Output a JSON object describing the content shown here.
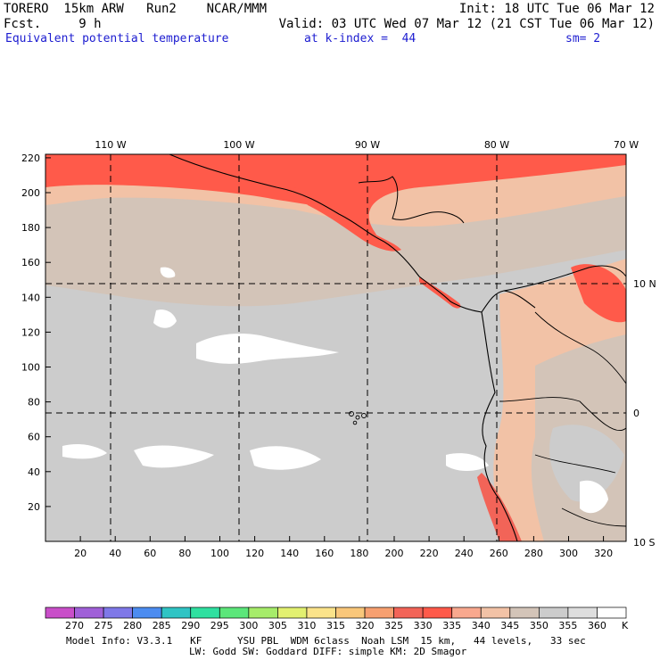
{
  "header": {
    "model": "TORERO  15km ARW   Run2    NCAR/MMM",
    "init": "Init: 18 UTC Tue 06 Mar 12",
    "fcst_label": "Fcst.     9 h",
    "valid": "Valid: 03 UTC Wed 07 Mar 12 (21 CST Tue 06 Mar 12)",
    "field": "Equivalent potential temperature",
    "level": "at k-index =  44",
    "smoothing": "sm= 2"
  },
  "map": {
    "lon_labels": [
      "110 W",
      "100 W",
      "90 W",
      "80 W",
      "70 W"
    ],
    "lat_labels": [
      "10 N",
      "0",
      "10 S"
    ],
    "x_ticks": [
      "20",
      "40",
      "60",
      "80",
      "100",
      "120",
      "140",
      "160",
      "180",
      "200",
      "220",
      "240",
      "260",
      "280",
      "300",
      "320"
    ],
    "y_ticks": [
      "20",
      "40",
      "60",
      "80",
      "100",
      "120",
      "140",
      "160",
      "180",
      "200",
      "220"
    ]
  },
  "colorbar": {
    "levels": [
      "270",
      "275",
      "280",
      "285",
      "290",
      "295",
      "300",
      "305",
      "310",
      "315",
      "320",
      "325",
      "330",
      "335",
      "340",
      "345",
      "350",
      "355",
      "360"
    ],
    "unit": "K",
    "colors": [
      "#c94fc9",
      "#a060d8",
      "#7f78e8",
      "#4c8cf0",
      "#2fc4c4",
      "#2fe0a0",
      "#5ce67a",
      "#a6ec6a",
      "#e2f070",
      "#fbe38a",
      "#f9c77a",
      "#f7a070",
      "#f26458",
      "#ff5a4a",
      "#f8a88e",
      "#f2c2a6",
      "#d3c4b8",
      "#cccccc",
      "#dedede",
      "#ffffff"
    ]
  },
  "footer": {
    "line1": "Model Info: V3.3.1   KF      YSU PBL  WDM 6class  Noah LSM  15 km,   44 levels,   33 sec",
    "line2": "LW: Godd SW: Goddard DIFF: simple KM: 2D Smagor"
  }
}
